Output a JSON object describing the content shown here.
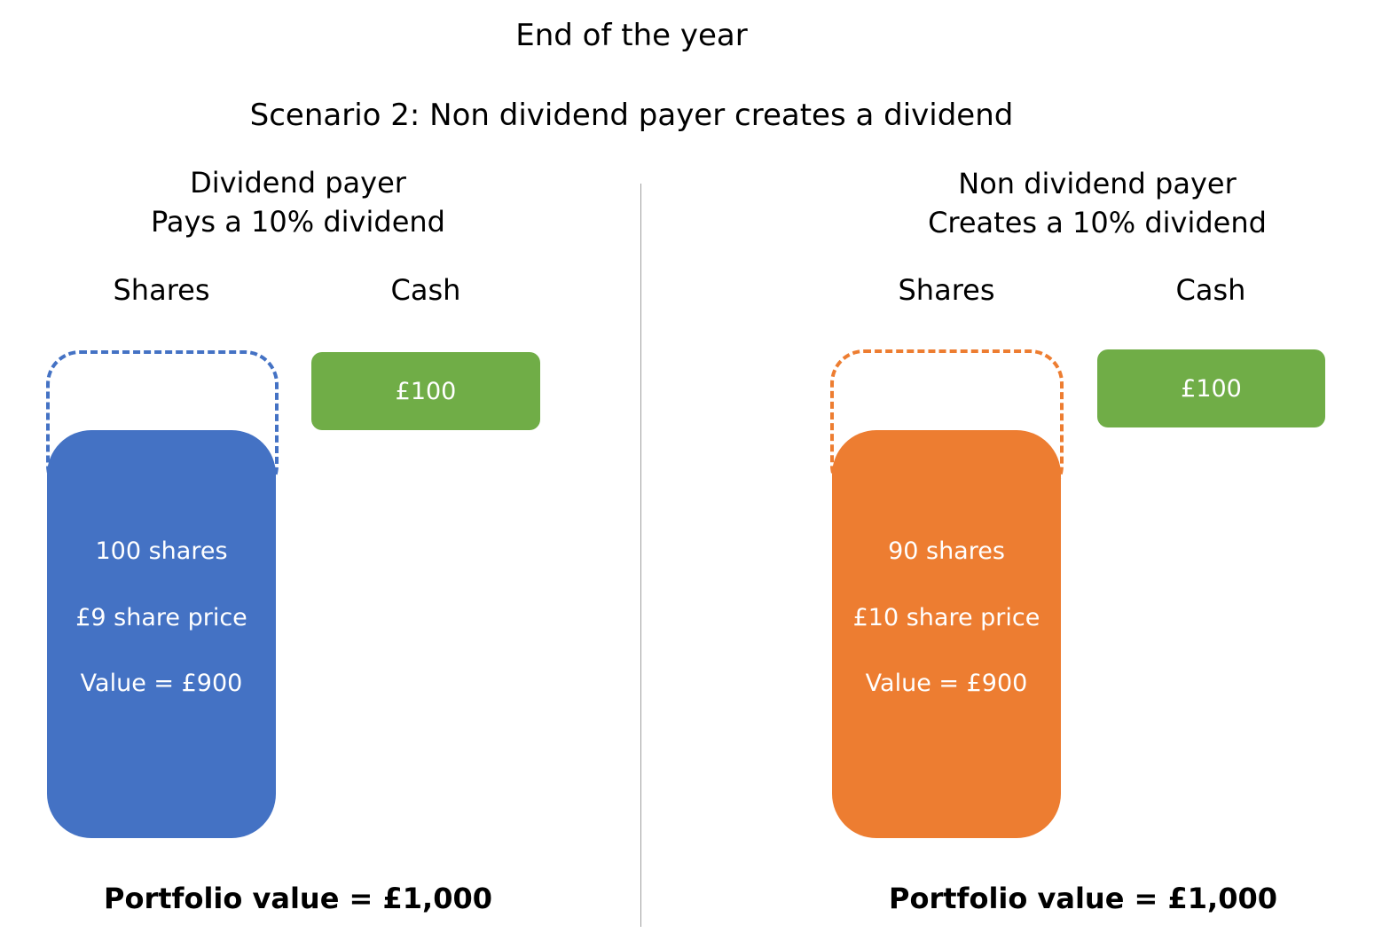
{
  "title": "End of the year",
  "subtitle": "Scenario 2: Non dividend payer creates a dividend",
  "left": {
    "heading_line1": "Dividend payer",
    "heading_line2": "Pays a 10% dividend",
    "shares_label": "Shares",
    "cash_label": "Cash",
    "cash_value": "£100",
    "share_count": "100 shares",
    "share_price": "£9 share price",
    "share_value": "Value = £900",
    "portfolio": "Portfolio value = £1,000",
    "color": "#4472c4"
  },
  "right": {
    "heading_line1": "Non dividend payer",
    "heading_line2": "Creates a 10% dividend",
    "shares_label": "Shares",
    "cash_label": "Cash",
    "cash_value": "£100",
    "share_count": "90 shares",
    "share_price": "£10 share price",
    "share_value": "Value = £900",
    "portfolio": "Portfolio value = £1,000",
    "color": "#ed7d31"
  },
  "cash_color": "#70ad47"
}
